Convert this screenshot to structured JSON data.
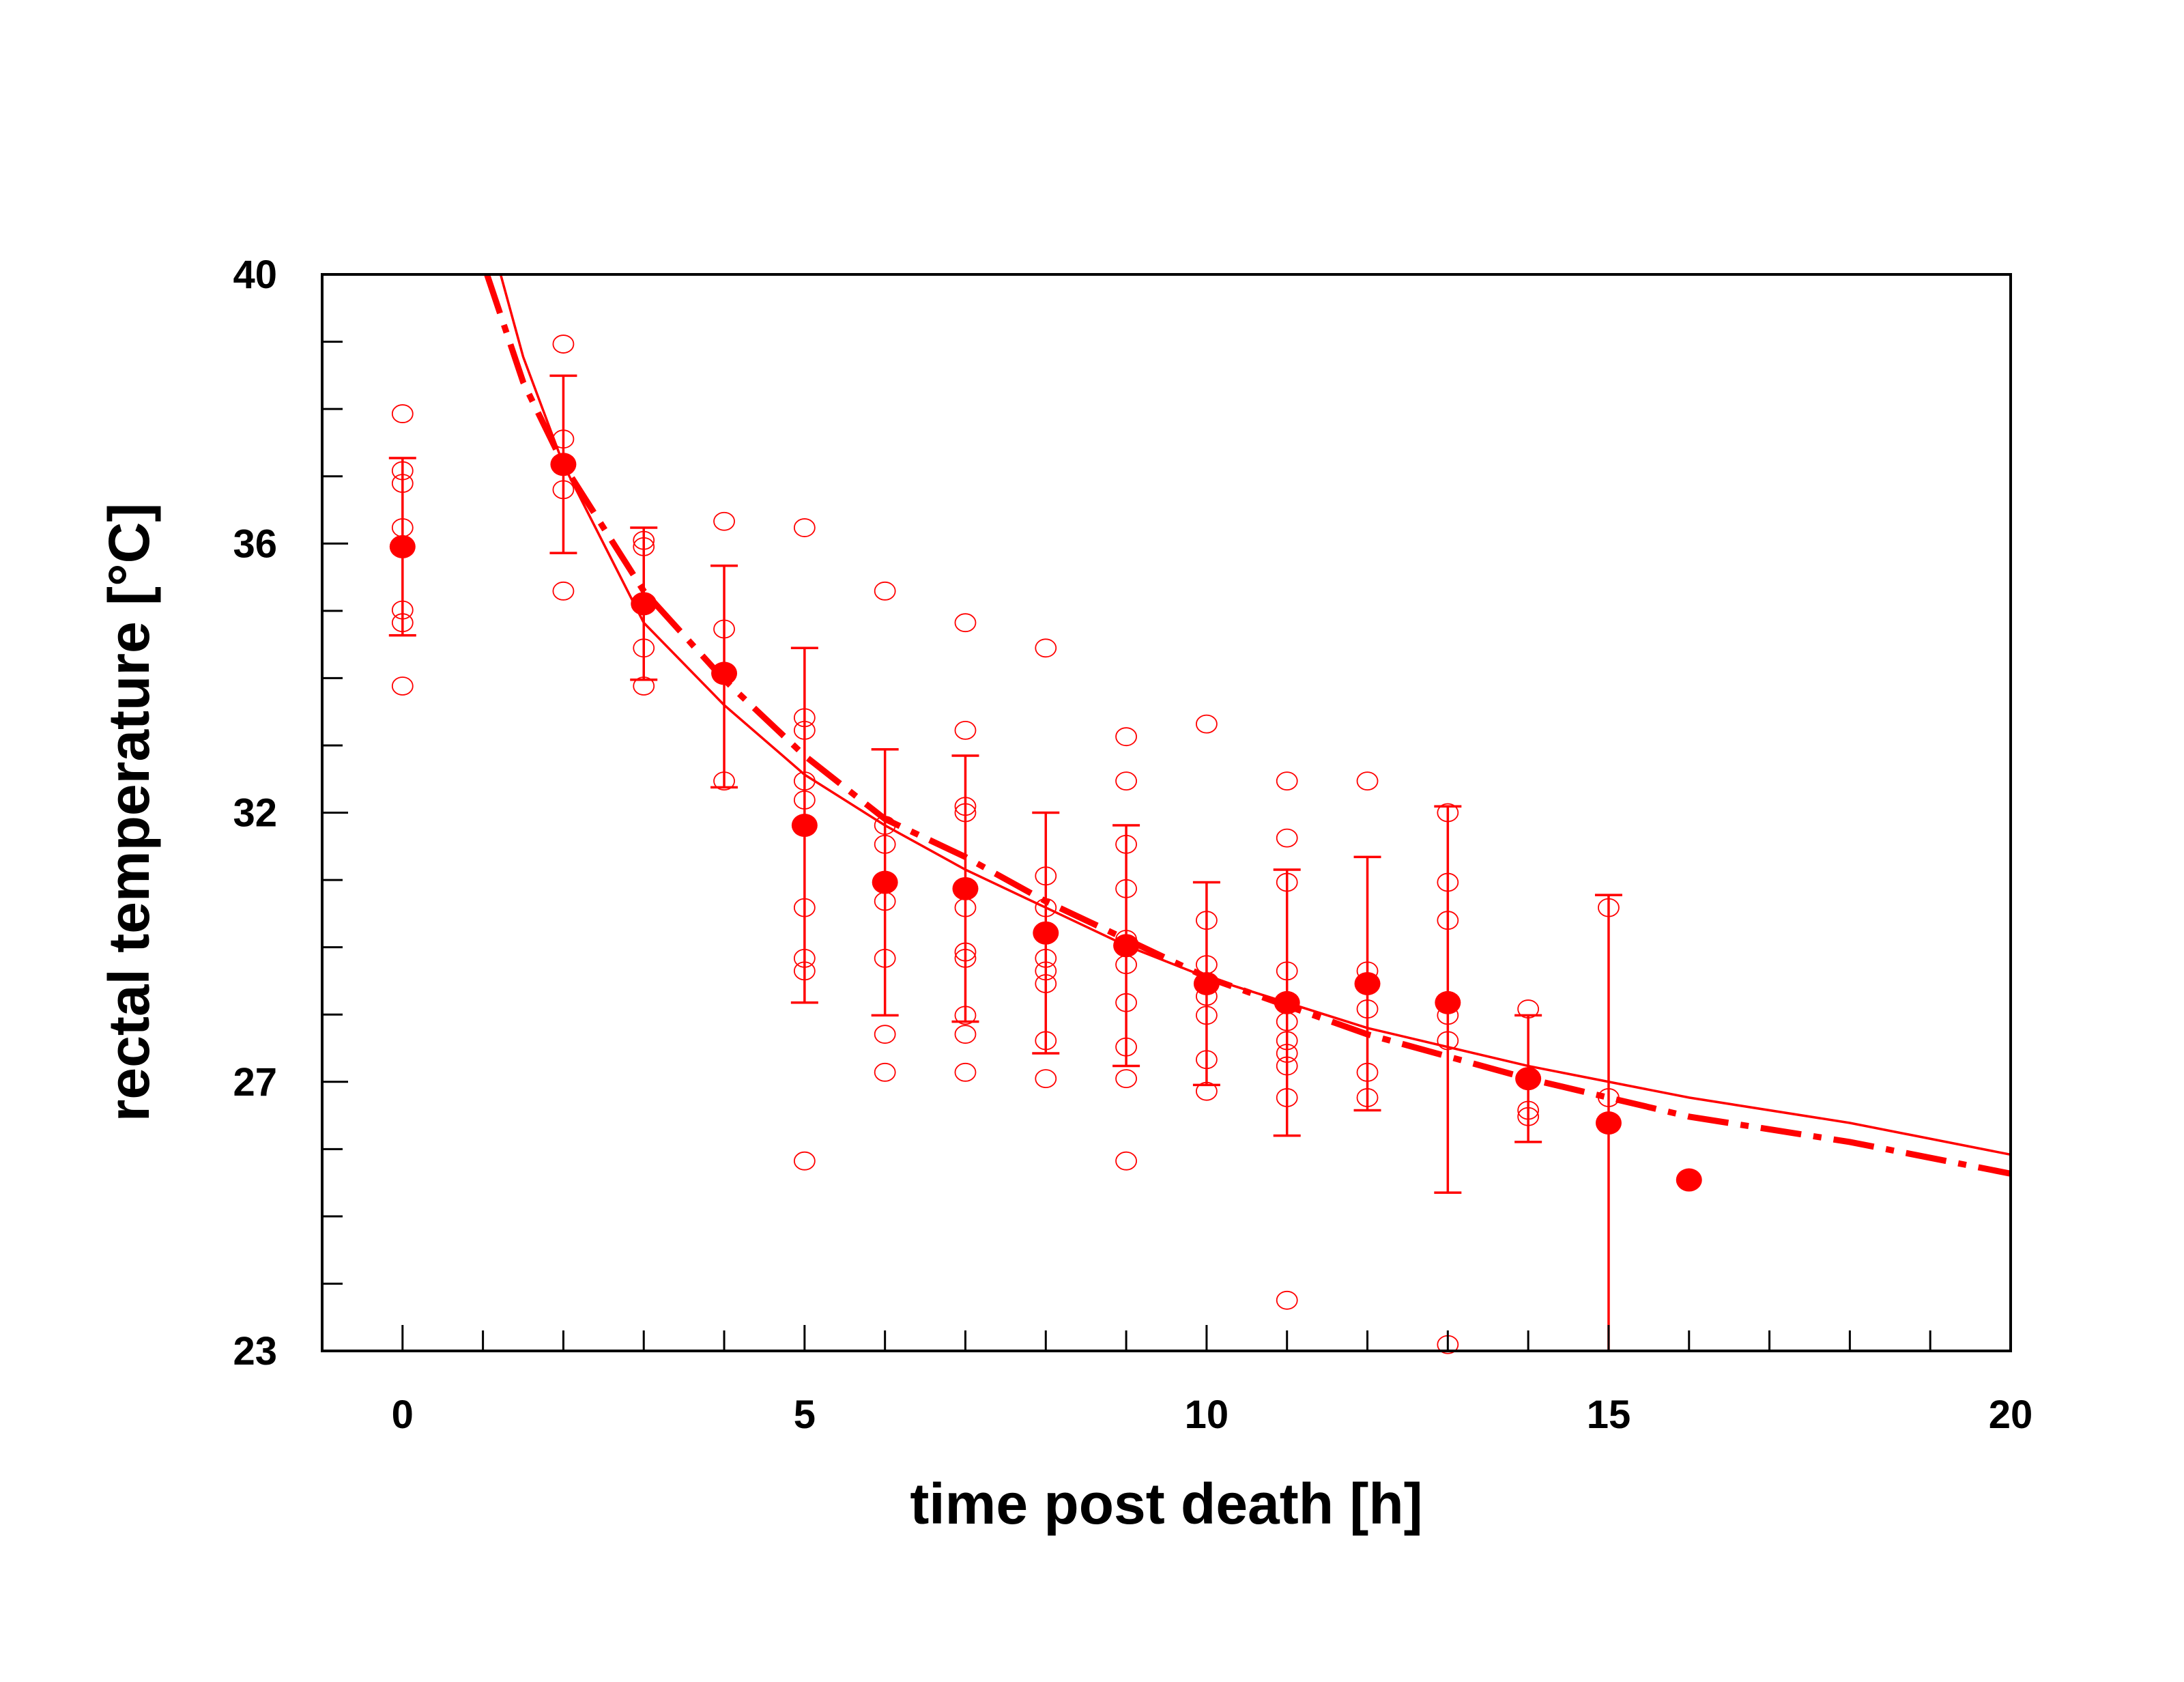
{
  "chart_data": {
    "type": "scatter",
    "title": "",
    "xlabel": "time post death [h]",
    "ylabel": "rectal temperature [°C]",
    "xlim": [
      -1,
      20
    ],
    "ylim": [
      23,
      40
    ],
    "x_ticks": [
      0,
      5,
      10,
      15,
      20
    ],
    "y_tick_labels": [
      {
        "value": 40,
        "label": "40"
      },
      {
        "value": 35.75,
        "label": "36"
      },
      {
        "value": 31.5,
        "label": "32"
      },
      {
        "value": 27.25,
        "label": "27"
      },
      {
        "value": 23,
        "label": "23"
      }
    ],
    "grid": false,
    "color": "#ff0000",
    "means": {
      "name": "mean ± SD",
      "x": [
        0,
        2,
        3,
        4,
        5,
        6,
        7,
        8,
        9,
        10,
        11,
        12,
        13,
        14,
        15,
        16
      ],
      "y": [
        35.7,
        37.0,
        34.8,
        33.7,
        31.3,
        30.4,
        30.3,
        29.6,
        29.4,
        28.8,
        28.5,
        28.8,
        28.5,
        27.3,
        26.6,
        25.7
      ],
      "err_high": [
        37.1,
        38.4,
        36.0,
        35.4,
        34.1,
        32.5,
        32.4,
        31.5,
        31.3,
        30.4,
        30.6,
        30.8,
        31.6,
        28.3,
        30.2,
        null
      ],
      "err_low": [
        34.3,
        35.6,
        33.6,
        31.9,
        28.5,
        28.3,
        28.2,
        27.7,
        27.5,
        27.2,
        26.4,
        26.8,
        25.5,
        26.3,
        23.0,
        null
      ]
    },
    "individual": [
      {
        "x": 0,
        "y": [
          37.8,
          36.9,
          36.7,
          36.0,
          34.7,
          34.5,
          33.5
        ]
      },
      {
        "x": 2,
        "y": [
          38.9,
          37.4,
          36.6,
          35.0
        ]
      },
      {
        "x": 3,
        "y": [
          35.8,
          35.7,
          34.1,
          33.5
        ]
      },
      {
        "x": 4,
        "y": [
          36.1,
          34.4,
          33.7,
          32.0
        ]
      },
      {
        "x": 5,
        "y": [
          36.0,
          33.0,
          32.8,
          32.0,
          31.7,
          30.0,
          29.2,
          29.0,
          26.0
        ]
      },
      {
        "x": 6,
        "y": [
          35.0,
          31.3,
          31.0,
          30.1,
          29.2,
          28.0,
          27.4
        ]
      },
      {
        "x": 7,
        "y": [
          34.5,
          32.8,
          31.6,
          31.5,
          30.3,
          30.0,
          29.3,
          29.2,
          28.3,
          28.0,
          27.4
        ]
      },
      {
        "x": 8,
        "y": [
          34.1,
          30.5,
          30.0,
          29.6,
          29.2,
          29.0,
          28.8,
          27.9,
          27.3
        ]
      },
      {
        "x": 9,
        "y": [
          32.7,
          32.0,
          31.0,
          30.3,
          29.5,
          29.4,
          29.1,
          28.5,
          27.8,
          27.3,
          26.0
        ]
      },
      {
        "x": 10,
        "y": [
          32.9,
          29.8,
          29.1,
          28.8,
          28.6,
          28.3,
          27.6,
          27.1
        ]
      },
      {
        "x": 11,
        "y": [
          32.0,
          31.1,
          30.4,
          29.0,
          28.5,
          28.2,
          27.9,
          27.7,
          27.5,
          27.0,
          23.8
        ]
      },
      {
        "x": 12,
        "y": [
          32.0,
          29.0,
          28.4,
          27.4,
          27.0
        ]
      },
      {
        "x": 13,
        "y": [
          31.5,
          30.4,
          29.8,
          28.3,
          27.9,
          23.1
        ]
      },
      {
        "x": 14,
        "y": [
          28.4,
          26.8,
          26.7
        ]
      },
      {
        "x": 15,
        "y": [
          30.0,
          27.0
        ]
      }
    ],
    "curves": [
      {
        "name": "fit (solid)",
        "style": "solid",
        "x": [
          1.22,
          1.5,
          2,
          3,
          4,
          5,
          6,
          7,
          8,
          9,
          10,
          12,
          14,
          16,
          18,
          20
        ],
        "y": [
          40,
          38.7,
          37.0,
          34.5,
          33.2,
          32.1,
          31.3,
          30.6,
          30.0,
          29.4,
          28.9,
          28.1,
          27.5,
          27.0,
          26.6,
          26.1
        ]
      },
      {
        "name": "fit (dash-dot)",
        "style": "dash-dot",
        "x": [
          1.05,
          1.5,
          2,
          3,
          4,
          5,
          6,
          7,
          8,
          9,
          10,
          12,
          14,
          16,
          18,
          20
        ],
        "y": [
          40,
          38.3,
          37.0,
          35.0,
          33.6,
          32.4,
          31.4,
          30.8,
          30.1,
          29.5,
          28.9,
          28.0,
          27.3,
          26.7,
          26.3,
          25.8
        ]
      }
    ]
  }
}
